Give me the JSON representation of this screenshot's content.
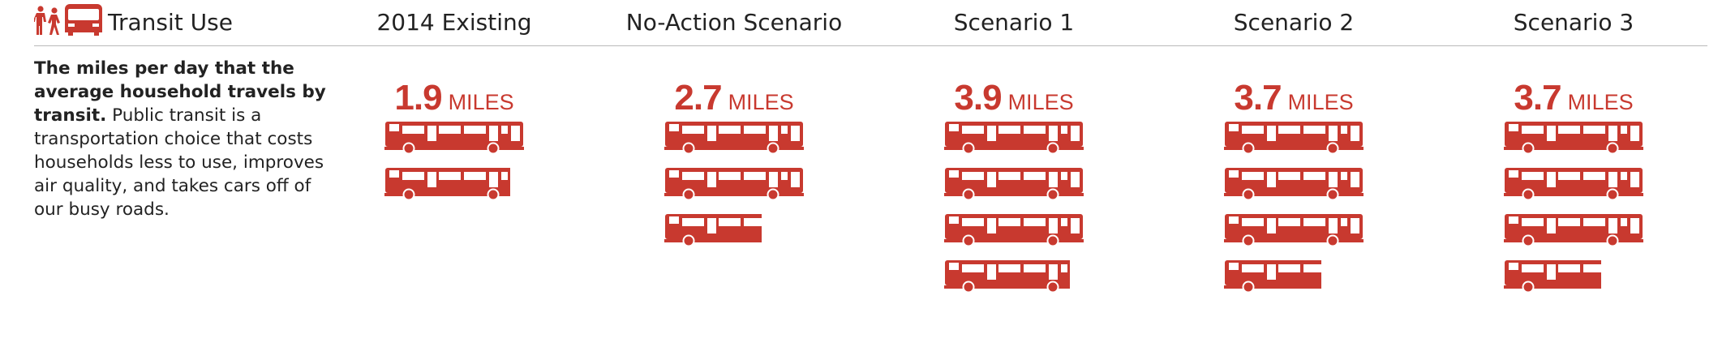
{
  "header": {
    "section_title": "Transit Use",
    "icon": "pedestrians-and-bus-icon",
    "columns": [
      "2014 Existing",
      "No-Action Scenario",
      "Scenario 1",
      "Scenario 2",
      "Scenario 3"
    ]
  },
  "description": {
    "bold": "The miles per day that the average household travels by transit.",
    "text": " Public transit is a transportation choice that costs households less to use, improves air quality, and takes cars off of our busy roads."
  },
  "unit_label": "MILES",
  "colors": {
    "accent": "#c8392f",
    "divider": "#b9b9b9",
    "text": "#222222"
  },
  "chart_data": {
    "type": "pictograph",
    "unit_icon": "bus-icon",
    "categories": [
      "2014 Existing",
      "No-Action Scenario",
      "Scenario 1",
      "Scenario 2",
      "Scenario 3"
    ],
    "values": [
      1.9,
      2.7,
      3.9,
      3.7,
      3.7
    ],
    "value_labels": [
      "1.9",
      "2.7",
      "3.9",
      "3.7",
      "3.7"
    ],
    "unit": "MILES"
  }
}
